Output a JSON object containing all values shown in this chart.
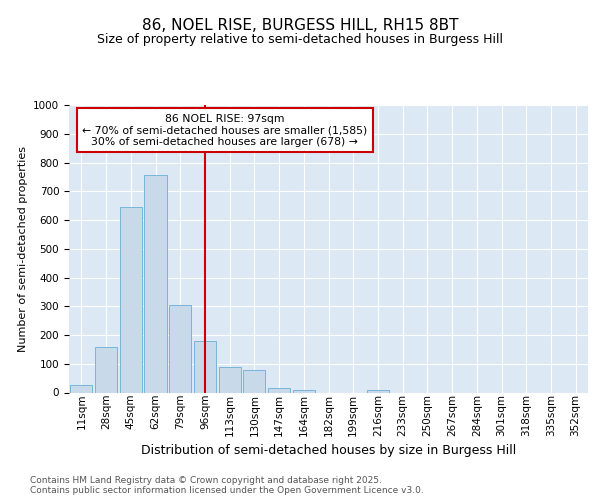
{
  "title1": "86, NOEL RISE, BURGESS HILL, RH15 8BT",
  "title2": "Size of property relative to semi-detached houses in Burgess Hill",
  "xlabel": "Distribution of semi-detached houses by size in Burgess Hill",
  "ylabel": "Number of semi-detached properties",
  "footnote": "Contains HM Land Registry data © Crown copyright and database right 2025.\nContains public sector information licensed under the Open Government Licence v3.0.",
  "bin_labels": [
    "11sqm",
    "28sqm",
    "45sqm",
    "62sqm",
    "79sqm",
    "96sqm",
    "113sqm",
    "130sqm",
    "147sqm",
    "164sqm",
    "182sqm",
    "199sqm",
    "216sqm",
    "233sqm",
    "250sqm",
    "267sqm",
    "284sqm",
    "301sqm",
    "318sqm",
    "335sqm",
    "352sqm"
  ],
  "bar_values": [
    25,
    160,
    645,
    755,
    305,
    180,
    90,
    80,
    15,
    10,
    0,
    0,
    10,
    0,
    0,
    0,
    0,
    0,
    0,
    0,
    0
  ],
  "bar_color": "#c8d9ea",
  "bar_edge_color": "#6aaed6",
  "vline_position": 5,
  "vline_color": "#cc0000",
  "annotation_line1": "86 NOEL RISE: 97sqm",
  "annotation_line2": "← 70% of semi-detached houses are smaller (1,585)",
  "annotation_line3": "30% of semi-detached houses are larger (678) →",
  "annotation_box_edgecolor": "#cc0000",
  "ylim_max": 1000,
  "yticks": [
    0,
    100,
    200,
    300,
    400,
    500,
    600,
    700,
    800,
    900,
    1000
  ],
  "grid_color": "#ffffff",
  "bg_color": "#dce9f5",
  "fig_bg_color": "#ffffff",
  "title1_fontsize": 11,
  "title2_fontsize": 9,
  "ylabel_fontsize": 8,
  "xlabel_fontsize": 9,
  "footnote_fontsize": 6.5,
  "tick_fontsize": 7.5
}
